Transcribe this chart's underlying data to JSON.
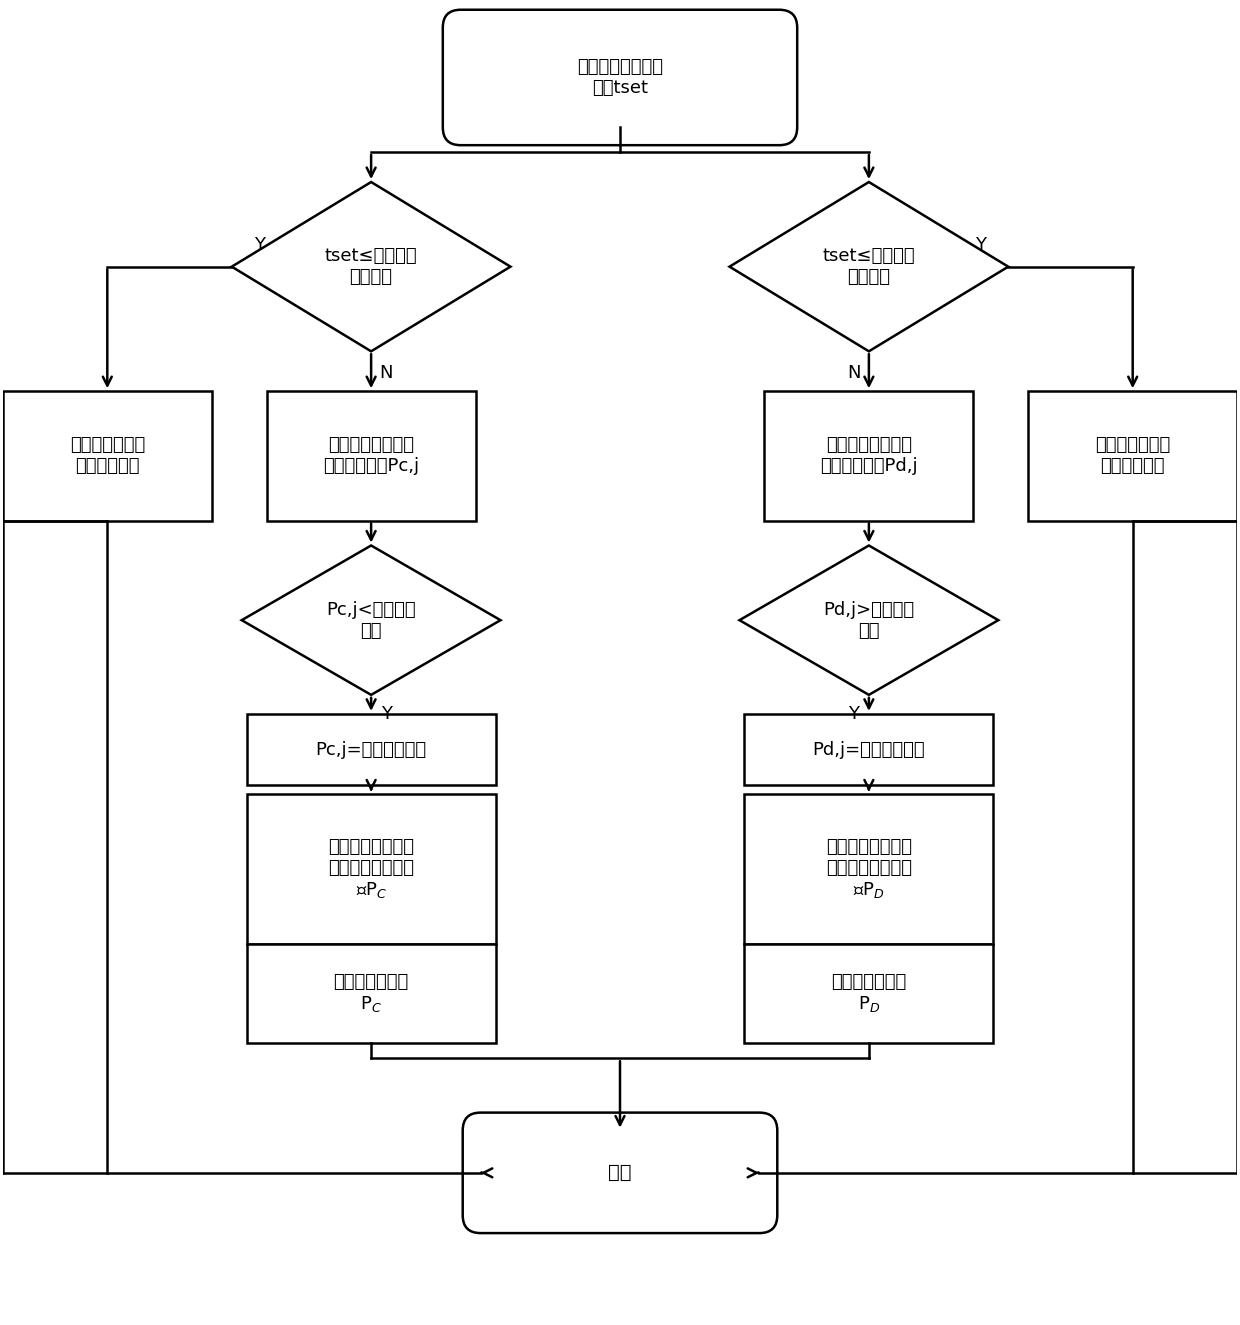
{
  "title": "储能电站集群设定\n时间tset",
  "end_text": "结束",
  "left_diamond1": "tset≤最大充电\n可用时间",
  "right_diamond1": "tset≤最大放电\n可用时间",
  "left_box1": "可用充电功率为\n最大充电功率",
  "left_box2": "各储能电站的理论\n充电功率计算Pc,j",
  "right_box1": "各储能电站的理论\n放电功率计算Pd,j",
  "right_box2": "可用放电功率为\n最大放电功率",
  "left_diamond2": "Pc,j<最大充电\n功率",
  "right_diamond2": "Pd,j>最大放电\n功率",
  "left_box3": "Pc,j=最大充电功率",
  "right_box3": "Pd,j=最大放电功率",
  "left_box4": "计算储能电站集群\n建议的最大充电功\n率PC",
  "right_box4": "计算储能电站集群\n建议的最大放电功\n率PD",
  "left_box5": "可用充电功率为\nPC",
  "right_box5": "可用放电功率为\nPD",
  "fig_width": 12.4,
  "fig_height": 13.25,
  "bg_color": "#ffffff",
  "box_color": "#ffffff",
  "box_edge": "#000000",
  "line_color": "#000000",
  "font_size": 13
}
